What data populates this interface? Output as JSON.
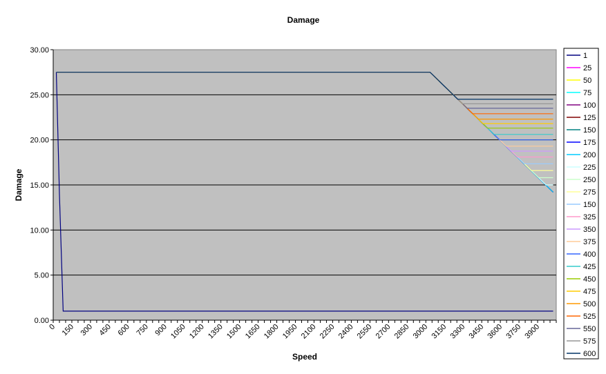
{
  "chart_data": {
    "type": "line",
    "title": "Damage",
    "xlabel": "Speed",
    "ylabel": "Damage",
    "xlim": [
      0,
      4050
    ],
    "ylim": [
      0,
      30
    ],
    "x_tick_labels": [
      "0",
      "150",
      "300",
      "450",
      "600",
      "750",
      "900",
      "1050",
      "1200",
      "1350",
      "1500",
      "1650",
      "1800",
      "1950",
      "2100",
      "2250",
      "2400",
      "2550",
      "2700",
      "2850",
      "3000",
      "3150",
      "3300",
      "3450",
      "3600",
      "3750",
      "3900"
    ],
    "y_tick_labels": [
      "0.00",
      "5.00",
      "10.00",
      "15.00",
      "20.00",
      "25.00",
      "30.00"
    ],
    "grid": "horizontal major",
    "legend_position": "right",
    "plot_background": "#C0C0C0",
    "series": [
      {
        "name": "1",
        "color": "#000080",
        "points": [
          [
            25,
            27.5
          ],
          [
            50,
            14
          ],
          [
            80,
            1
          ],
          [
            4025,
            1
          ]
        ]
      },
      {
        "name": "25",
        "color": "#FF00FF",
        "points": [
          [
            25,
            27.5
          ],
          [
            3034,
            27.5
          ],
          [
            4025,
            14.2
          ]
        ]
      },
      {
        "name": "50",
        "color": "#FFFF00",
        "points": [
          [
            25,
            27.5
          ],
          [
            3034,
            27.5
          ],
          [
            4025,
            14.2
          ]
        ]
      },
      {
        "name": "75",
        "color": "#00FFFF",
        "points": [
          [
            25,
            27.5
          ],
          [
            3034,
            27.5
          ],
          [
            4025,
            14.2
          ]
        ]
      },
      {
        "name": "100",
        "color": "#800080",
        "points": [
          [
            25,
            27.5
          ],
          [
            3034,
            27.5
          ],
          [
            4025,
            14.2
          ]
        ]
      },
      {
        "name": "125",
        "color": "#800000",
        "points": [
          [
            25,
            27.5
          ],
          [
            3034,
            27.5
          ],
          [
            4025,
            14.2
          ]
        ]
      },
      {
        "name": "150",
        "color": "#008080",
        "points": [
          [
            25,
            27.5
          ],
          [
            3034,
            27.5
          ],
          [
            4025,
            14.2
          ]
        ]
      },
      {
        "name": "175",
        "color": "#0000FF",
        "points": [
          [
            25,
            27.5
          ],
          [
            3034,
            27.5
          ],
          [
            4025,
            14.2
          ]
        ]
      },
      {
        "name": "200",
        "color": "#00CCFF",
        "points": [
          [
            25,
            27.5
          ],
          [
            3034,
            27.5
          ],
          [
            4025,
            14.2
          ]
        ]
      },
      {
        "name": "225",
        "color": "#CCFFFF",
        "points": [
          [
            25,
            27.5
          ],
          [
            3034,
            27.5
          ],
          [
            3968,
            15.0
          ],
          [
            4025,
            15.0
          ]
        ]
      },
      {
        "name": "250",
        "color": "#CCFFCC",
        "points": [
          [
            25,
            27.5
          ],
          [
            3034,
            27.5
          ],
          [
            3908,
            15.8
          ],
          [
            4025,
            15.8
          ]
        ]
      },
      {
        "name": "275",
        "color": "#FFFF99",
        "points": [
          [
            25,
            27.5
          ],
          [
            3034,
            27.5
          ],
          [
            3849,
            16.6
          ],
          [
            4025,
            16.6
          ]
        ]
      },
      {
        "name": "150",
        "color": "#99CCFF",
        "points": [
          [
            25,
            27.5
          ],
          [
            3034,
            27.5
          ],
          [
            3793,
            17.35
          ],
          [
            4025,
            17.35
          ]
        ]
      },
      {
        "name": "325",
        "color": "#FF99CC",
        "points": [
          [
            25,
            27.5
          ],
          [
            3034,
            27.5
          ],
          [
            3737,
            18.1
          ],
          [
            4025,
            18.1
          ]
        ]
      },
      {
        "name": "350",
        "color": "#CC99FF",
        "points": [
          [
            25,
            27.5
          ],
          [
            3034,
            27.5
          ],
          [
            3688,
            18.75
          ],
          [
            4025,
            18.75
          ]
        ]
      },
      {
        "name": "375",
        "color": "#FFCC99",
        "points": [
          [
            25,
            27.5
          ],
          [
            3034,
            27.5
          ],
          [
            3647,
            19.3
          ],
          [
            4025,
            19.3
          ]
        ]
      },
      {
        "name": "400",
        "color": "#3366FF",
        "points": [
          [
            25,
            27.5
          ],
          [
            3034,
            27.5
          ],
          [
            3595,
            20.0
          ],
          [
            4025,
            20.0
          ]
        ]
      },
      {
        "name": "425",
        "color": "#33CCCC",
        "points": [
          [
            25,
            27.5
          ],
          [
            3034,
            27.5
          ],
          [
            3550,
            20.6
          ],
          [
            4025,
            20.6
          ]
        ]
      },
      {
        "name": "450",
        "color": "#99CC00",
        "points": [
          [
            25,
            27.5
          ],
          [
            3034,
            27.5
          ],
          [
            3497,
            21.3
          ],
          [
            4025,
            21.3
          ]
        ]
      },
      {
        "name": "475",
        "color": "#FFCC00",
        "points": [
          [
            25,
            27.5
          ],
          [
            3034,
            27.5
          ],
          [
            3460,
            21.8
          ],
          [
            4025,
            21.8
          ]
        ]
      },
      {
        "name": "500",
        "color": "#FF9900",
        "points": [
          [
            25,
            27.5
          ],
          [
            3034,
            27.5
          ],
          [
            3423,
            22.3
          ],
          [
            4025,
            22.3
          ]
        ]
      },
      {
        "name": "525",
        "color": "#FF6600",
        "points": [
          [
            25,
            27.5
          ],
          [
            3034,
            27.5
          ],
          [
            3378,
            22.9
          ],
          [
            4025,
            22.9
          ]
        ]
      },
      {
        "name": "550",
        "color": "#666699",
        "points": [
          [
            25,
            27.5
          ],
          [
            3034,
            27.5
          ],
          [
            3333,
            23.5
          ],
          [
            4025,
            23.5
          ]
        ]
      },
      {
        "name": "575",
        "color": "#969696",
        "points": [
          [
            25,
            27.5
          ],
          [
            3034,
            27.5
          ],
          [
            3296,
            24.0
          ],
          [
            4025,
            24.0
          ]
        ]
      },
      {
        "name": "600",
        "color": "#003366",
        "points": [
          [
            25,
            27.5
          ],
          [
            3034,
            27.5
          ],
          [
            3258,
            24.5
          ],
          [
            4025,
            24.5
          ]
        ]
      }
    ]
  }
}
